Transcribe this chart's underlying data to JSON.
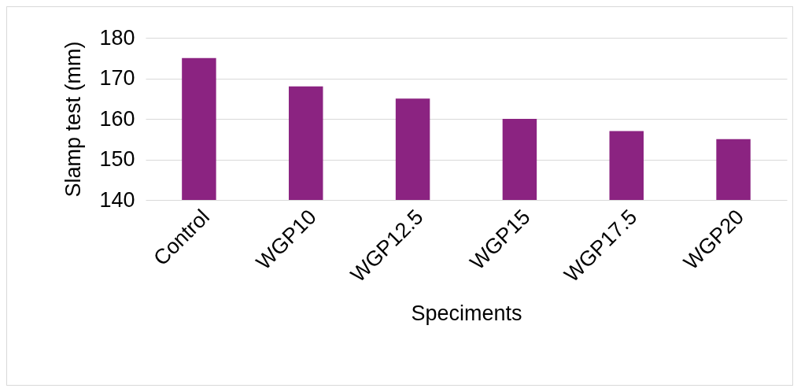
{
  "chart_data": {
    "type": "bar",
    "xlabel": "Speciments",
    "ylabel": "Slamp test (mm)",
    "categories": [
      "Control",
      "WGP10",
      "WGP12.5",
      "WGP15",
      "WGP17.5",
      "WGP20"
    ],
    "values": [
      175,
      168,
      165,
      160,
      157,
      155
    ],
    "color": "#8b2381",
    "ylim": [
      140,
      180
    ],
    "yticks": [
      140,
      150,
      160,
      170,
      180
    ],
    "grid": "y"
  }
}
